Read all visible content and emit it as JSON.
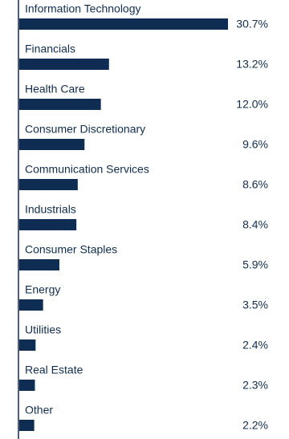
{
  "chart_data": {
    "type": "bar",
    "orientation": "horizontal",
    "categories": [
      "Information Technology",
      "Financials",
      "Health Care",
      "Consumer Discretionary",
      "Communication Services",
      "Industrials",
      "Consumer Staples",
      "Energy",
      "Utilities",
      "Real Estate",
      "Other"
    ],
    "values": [
      30.7,
      13.2,
      12.0,
      9.6,
      8.6,
      8.4,
      5.9,
      3.5,
      2.4,
      2.3,
      2.2
    ],
    "value_labels": [
      "30.7%",
      "13.2%",
      "12.0%",
      "9.6%",
      "8.6%",
      "8.4%",
      "5.9%",
      "3.5%",
      "2.4%",
      "2.3%",
      "2.2%"
    ],
    "color": "#0f2d52"
  }
}
